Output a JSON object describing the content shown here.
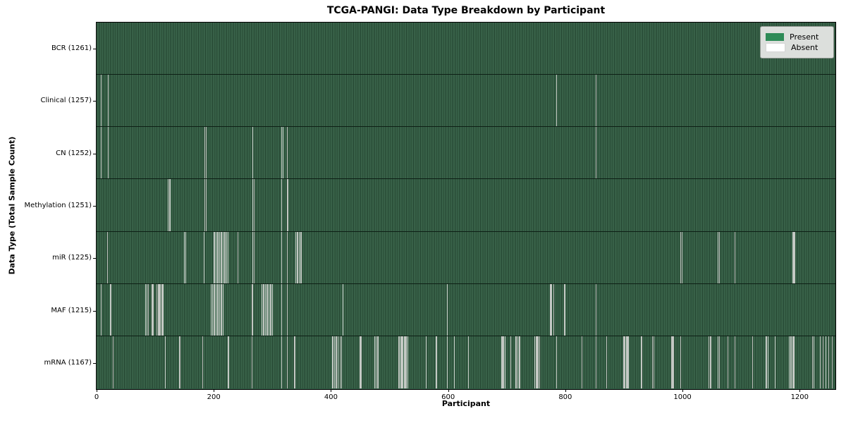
{
  "chart_data": {
    "type": "heatmap",
    "title": "TCGA-PANGI: Data Type Breakdown by Participant",
    "xlabel": "Participant",
    "ylabel": "Data Type (Total Sample Count)",
    "x_ticks": [
      0,
      200,
      400,
      600,
      800,
      1000,
      1200
    ],
    "x_range": [
      0,
      1261
    ],
    "total_participants": 1261,
    "grid": false,
    "legend_position": "upper right",
    "legend": [
      {
        "label": "Present",
        "color": "#2e8b57"
      },
      {
        "label": "Absent",
        "color": "#ffffff"
      }
    ],
    "rows": [
      {
        "label": "BCR (1261)",
        "data_type": "BCR",
        "present_count": 1261,
        "absent_participants": []
      },
      {
        "label": "Clinical (1257)",
        "data_type": "Clinical",
        "present_count": 1257,
        "absent_participants": [
          8,
          20,
          785,
          852
        ]
      },
      {
        "label": "CN (1252)",
        "data_type": "CN",
        "present_count": 1252,
        "absent_participants": [
          8,
          20,
          185,
          187,
          267,
          316,
          318,
          325,
          852
        ]
      },
      {
        "label": "Methylation (1251)",
        "data_type": "Methylation",
        "present_count": 1251,
        "absent_participants": [
          122,
          124,
          126,
          185,
          187,
          267,
          269,
          316,
          325,
          327
        ]
      },
      {
        "label": "miR (1225)",
        "data_type": "miR",
        "present_count": 1225,
        "absent_participants": [
          19,
          150,
          152,
          183,
          200,
          202,
          204,
          206,
          208,
          210,
          212,
          214,
          216,
          218,
          220,
          222,
          224,
          241,
          267,
          269,
          316,
          325,
          340,
          342,
          344,
          346,
          348,
          350,
          997,
          999,
          1061,
          1063,
          1090,
          1188,
          1190,
          1192
        ]
      },
      {
        "label": "MAF (1215)",
        "data_type": "MAF",
        "present_count": 1215,
        "absent_participants": [
          8,
          24,
          84,
          86,
          88,
          95,
          97,
          103,
          105,
          107,
          109,
          111,
          113,
          196,
          198,
          200,
          202,
          204,
          206,
          208,
          210,
          212,
          214,
          216,
          265,
          267,
          282,
          284,
          286,
          288,
          290,
          292,
          294,
          296,
          298,
          300,
          316,
          325,
          421,
          599,
          774,
          776,
          780,
          798,
          800,
          852
        ]
      },
      {
        "label": "mRNA (1167)",
        "data_type": "mRNA",
        "present_count": 1167,
        "absent_participants": [
          28,
          117,
          141,
          143,
          181,
          225,
          265,
          316,
          325,
          338,
          402,
          404,
          406,
          408,
          410,
          412,
          416,
          418,
          450,
          452,
          475,
          477,
          479,
          481,
          515,
          517,
          519,
          521,
          523,
          525,
          527,
          529,
          531,
          563,
          579,
          581,
          599,
          611,
          635,
          691,
          693,
          695,
          697,
          707,
          715,
          717,
          719,
          721,
          723,
          748,
          750,
          752,
          754,
          756,
          785,
          828,
          852,
          870,
          900,
          902,
          904,
          906,
          908,
          930,
          949,
          951,
          981,
          983,
          985,
          997,
          1045,
          1047,
          1049,
          1061,
          1063,
          1077,
          1090,
          1120,
          1142,
          1144,
          1146,
          1158,
          1182,
          1184,
          1186,
          1188,
          1190,
          1222,
          1224,
          1235,
          1240,
          1245,
          1250,
          1255
        ]
      }
    ]
  }
}
